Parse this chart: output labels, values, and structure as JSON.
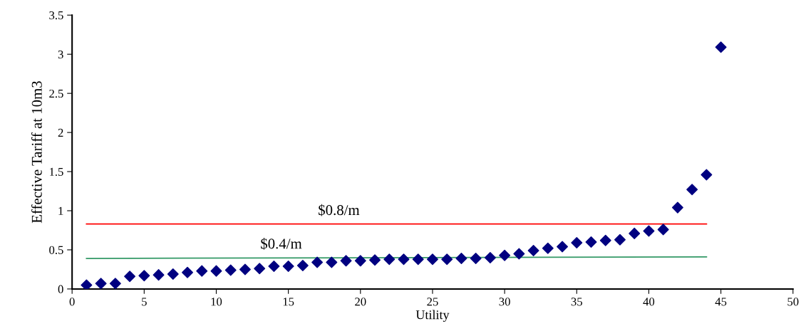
{
  "chart_data": {
    "type": "scatter",
    "xlabel": "Utility",
    "ylabel": "Effective Tariff at 10m3",
    "xlim": [
      0,
      50
    ],
    "xticks": [
      0,
      5,
      10,
      15,
      20,
      25,
      30,
      35,
      40,
      45,
      50
    ],
    "ylim": [
      0,
      3.5
    ],
    "yticks": [
      0,
      0.5,
      1,
      1.5,
      2,
      2.5,
      3,
      3.5
    ],
    "grid": false,
    "series": [
      {
        "marker": "diamond",
        "color": "#000080",
        "x": [
          1,
          2,
          3,
          4,
          5,
          6,
          7,
          8,
          9,
          10,
          11,
          12,
          13,
          14,
          15,
          16,
          17,
          18,
          19,
          20,
          21,
          22,
          23,
          24,
          25,
          26,
          27,
          28,
          29,
          30,
          31,
          32,
          33,
          34,
          35,
          36,
          37,
          38,
          39,
          40,
          41,
          42,
          43,
          44,
          45
        ],
        "values": [
          0.05,
          0.07,
          0.07,
          0.16,
          0.17,
          0.18,
          0.19,
          0.21,
          0.23,
          0.23,
          0.24,
          0.25,
          0.26,
          0.29,
          0.29,
          0.3,
          0.34,
          0.34,
          0.36,
          0.36,
          0.37,
          0.38,
          0.38,
          0.38,
          0.38,
          0.38,
          0.39,
          0.39,
          0.4,
          0.43,
          0.45,
          0.49,
          0.52,
          0.54,
          0.59,
          0.6,
          0.62,
          0.63,
          0.71,
          0.74,
          0.76,
          1.04,
          1.27,
          1.46,
          3.09
        ]
      },
      {
        "type": "line",
        "color": "#ff0000",
        "x": [
          1,
          44
        ],
        "values": [
          0.83,
          0.83
        ]
      },
      {
        "type": "line",
        "color": "#339966",
        "x": [
          1,
          44
        ],
        "values": [
          0.39,
          0.41
        ]
      }
    ],
    "annotations": [
      {
        "text": "$0.8/m",
        "x": 18.5,
        "y": 0.83
      },
      {
        "text": "$0.4/m",
        "x": 14.5,
        "y": 0.4
      }
    ]
  }
}
